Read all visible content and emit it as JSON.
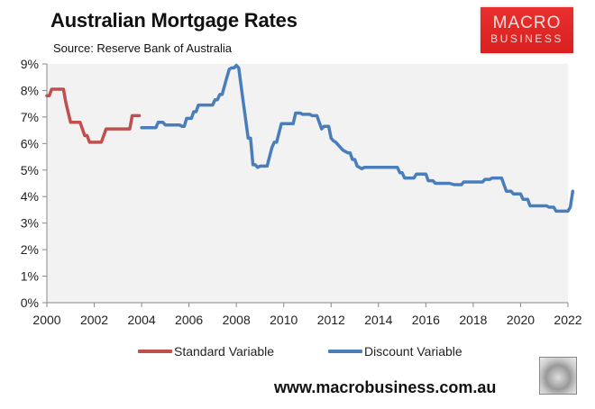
{
  "header": {
    "title": "Australian Mortgage Rates",
    "subtitle": "Source: Reserve Bank of Australia"
  },
  "logo": {
    "line1": "MACRO",
    "line2": "BUSINESS",
    "color": "#e0282a"
  },
  "footer": {
    "website": "www.macrobusiness.com.au",
    "icon": "wolf-icon"
  },
  "colors": {
    "standard": "#c0504d",
    "discount": "#4a7ebb",
    "plot_bg": "#f2f2f2"
  },
  "chart_data": {
    "type": "line",
    "title": "Australian Mortgage Rates",
    "subtitle": "Source: Reserve Bank of Australia",
    "xlabel": "",
    "ylabel": "",
    "xlim": [
      2000,
      2022
    ],
    "ylim": [
      0,
      9
    ],
    "x_ticks": [
      "2000",
      "2002",
      "2004",
      "2006",
      "2008",
      "2010",
      "2012",
      "2014",
      "2016",
      "2018",
      "2020",
      "2022"
    ],
    "y_ticks": [
      "0%",
      "1%",
      "2%",
      "3%",
      "4%",
      "5%",
      "6%",
      "7%",
      "8%",
      "9%"
    ],
    "grid": false,
    "legend_position": "bottom",
    "legend": [
      "Standard Variable",
      "Discount Variable"
    ],
    "series": [
      {
        "name": "Standard Variable",
        "color": "#c0504d",
        "points": [
          [
            2000.0,
            7.8
          ],
          [
            2000.1,
            7.8
          ],
          [
            2000.2,
            8.05
          ],
          [
            2000.7,
            8.05
          ],
          [
            2000.8,
            7.55
          ],
          [
            2001.0,
            6.8
          ],
          [
            2001.4,
            6.8
          ],
          [
            2001.6,
            6.3
          ],
          [
            2001.7,
            6.3
          ],
          [
            2001.8,
            6.05
          ],
          [
            2002.3,
            6.05
          ],
          [
            2002.5,
            6.55
          ],
          [
            2003.3,
            6.55
          ],
          [
            2003.5,
            6.55
          ],
          [
            2003.6,
            7.05
          ],
          [
            2003.9,
            7.05
          ]
        ]
      },
      {
        "name": "Discount Variable",
        "color": "#4a7ebb",
        "points": [
          [
            2004.0,
            6.6
          ],
          [
            2004.6,
            6.6
          ],
          [
            2004.7,
            6.8
          ],
          [
            2004.9,
            6.8
          ],
          [
            2005.0,
            6.7
          ],
          [
            2005.6,
            6.7
          ],
          [
            2005.7,
            6.65
          ],
          [
            2005.8,
            6.65
          ],
          [
            2005.9,
            6.95
          ],
          [
            2006.1,
            6.95
          ],
          [
            2006.2,
            7.2
          ],
          [
            2006.3,
            7.2
          ],
          [
            2006.4,
            7.45
          ],
          [
            2007.0,
            7.45
          ],
          [
            2007.1,
            7.65
          ],
          [
            2007.2,
            7.65
          ],
          [
            2007.3,
            7.85
          ],
          [
            2007.4,
            7.85
          ],
          [
            2007.6,
            8.5
          ],
          [
            2007.7,
            8.8
          ],
          [
            2007.8,
            8.85
          ],
          [
            2007.9,
            8.85
          ],
          [
            2008.0,
            8.95
          ],
          [
            2008.1,
            8.85
          ],
          [
            2008.3,
            7.5
          ],
          [
            2008.5,
            6.2
          ],
          [
            2008.6,
            6.2
          ],
          [
            2008.7,
            5.2
          ],
          [
            2008.8,
            5.2
          ],
          [
            2008.9,
            5.1
          ],
          [
            2009.0,
            5.15
          ],
          [
            2009.3,
            5.15
          ],
          [
            2009.5,
            5.85
          ],
          [
            2009.6,
            6.05
          ],
          [
            2009.7,
            6.05
          ],
          [
            2009.9,
            6.75
          ],
          [
            2010.4,
            6.75
          ],
          [
            2010.5,
            7.15
          ],
          [
            2010.7,
            7.15
          ],
          [
            2010.8,
            7.1
          ],
          [
            2011.1,
            7.1
          ],
          [
            2011.2,
            7.05
          ],
          [
            2011.4,
            7.05
          ],
          [
            2011.6,
            6.55
          ],
          [
            2011.7,
            6.65
          ],
          [
            2011.9,
            6.65
          ],
          [
            2012.0,
            6.2
          ],
          [
            2012.1,
            6.1
          ],
          [
            2012.2,
            6.05
          ],
          [
            2012.4,
            5.85
          ],
          [
            2012.5,
            5.75
          ],
          [
            2012.7,
            5.65
          ],
          [
            2012.8,
            5.65
          ],
          [
            2012.9,
            5.4
          ],
          [
            2013.0,
            5.4
          ],
          [
            2013.1,
            5.15
          ],
          [
            2013.3,
            5.05
          ],
          [
            2013.4,
            5.1
          ],
          [
            2014.8,
            5.1
          ],
          [
            2014.9,
            4.9
          ],
          [
            2015.0,
            4.9
          ],
          [
            2015.1,
            4.7
          ],
          [
            2015.5,
            4.7
          ],
          [
            2015.6,
            4.85
          ],
          [
            2016.0,
            4.85
          ],
          [
            2016.1,
            4.6
          ],
          [
            2016.3,
            4.6
          ],
          [
            2016.4,
            4.5
          ],
          [
            2017.0,
            4.5
          ],
          [
            2017.2,
            4.45
          ],
          [
            2017.5,
            4.45
          ],
          [
            2017.6,
            4.55
          ],
          [
            2018.4,
            4.55
          ],
          [
            2018.5,
            4.65
          ],
          [
            2018.7,
            4.65
          ],
          [
            2018.8,
            4.7
          ],
          [
            2019.2,
            4.7
          ],
          [
            2019.4,
            4.2
          ],
          [
            2019.6,
            4.2
          ],
          [
            2019.7,
            4.1
          ],
          [
            2020.0,
            4.1
          ],
          [
            2020.1,
            3.9
          ],
          [
            2020.3,
            3.9
          ],
          [
            2020.4,
            3.65
          ],
          [
            2021.1,
            3.65
          ],
          [
            2021.2,
            3.6
          ],
          [
            2021.4,
            3.6
          ],
          [
            2021.5,
            3.45
          ],
          [
            2022.0,
            3.45
          ],
          [
            2022.1,
            3.6
          ],
          [
            2022.2,
            4.2
          ]
        ]
      }
    ]
  }
}
